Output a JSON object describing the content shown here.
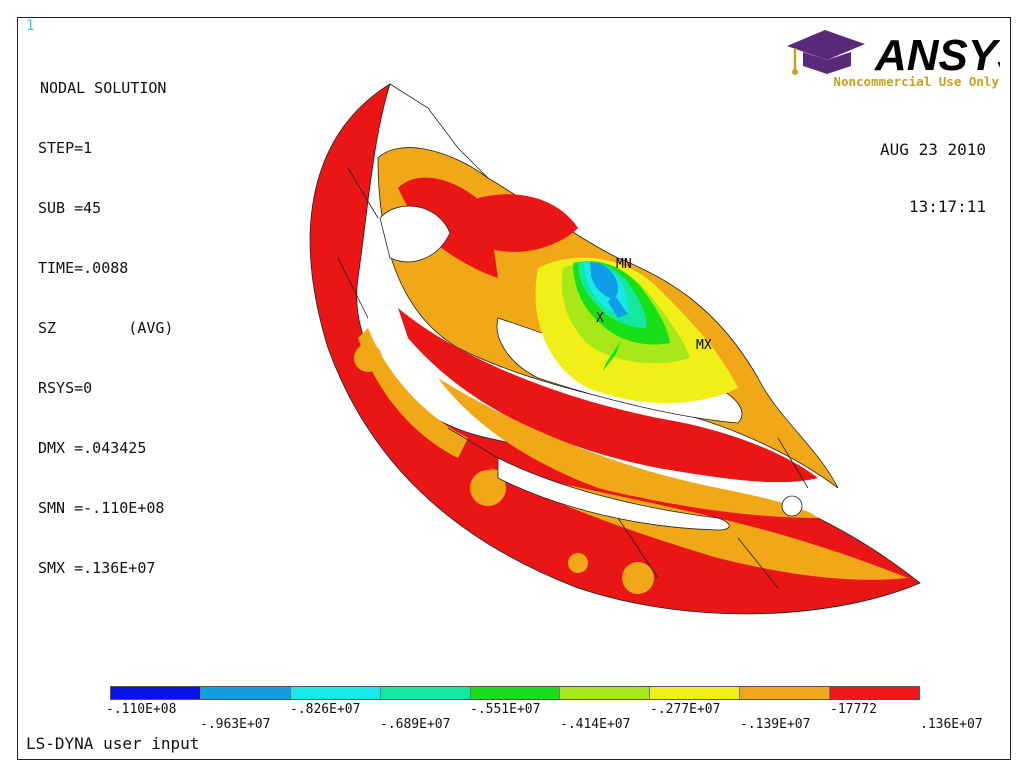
{
  "window_number": "1",
  "info": {
    "title": "NODAL SOLUTION",
    "lines": [
      "STEP=1",
      "SUB =45",
      "TIME=.0088",
      "SZ        (AVG)",
      "RSYS=0",
      "DMX =.043425",
      "SMN =-.110E+08",
      "SMX =.136E+07"
    ]
  },
  "logo": {
    "brand": "ANSYS",
    "subtitle": "Noncommercial Use Only",
    "icon": "graduation-cap-icon"
  },
  "datetime": {
    "date": "AUG 23 2010",
    "time": "13:17:11"
  },
  "model_labels": {
    "min": "MN",
    "max": "MX",
    "axis": "X"
  },
  "legend": {
    "colors": [
      "#0a14e8",
      "#109ee8",
      "#18e8e8",
      "#14e8a0",
      "#18e018",
      "#a8e818",
      "#f0f018",
      "#f0a818",
      "#ee1818"
    ],
    "upper_labels": [
      "-.110E+08",
      "-.826E+07",
      "-.551E+07",
      "-.277E+07",
      "-17772"
    ],
    "lower_labels": [
      "-.963E+07",
      "-.689E+07",
      "-.414E+07",
      "-.139E+07",
      ".136E+07"
    ]
  },
  "footer": "LS-DYNA user input"
}
